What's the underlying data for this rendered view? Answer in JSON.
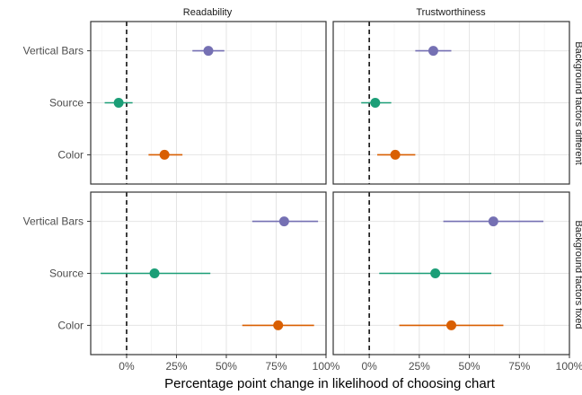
{
  "chart_data": {
    "type": "dot-errorbar",
    "xlabel": "Percentage point change in likelihood of choosing chart",
    "xlim": [
      -0.18,
      1.0
    ],
    "x_ticks": [
      0,
      0.25,
      0.5,
      0.75,
      1.0
    ],
    "x_tick_labels": [
      "0%",
      "25%",
      "50%",
      "75%",
      "100%"
    ],
    "reference_line_x": 0,
    "categories": [
      "Vertical Bars",
      "Source",
      "Color"
    ],
    "colors": {
      "Vertical Bars": "#7570b3",
      "Source": "#1b9e77",
      "Color": "#d95f02"
    },
    "columns": [
      "Readability",
      "Trustworthiness"
    ],
    "rows": [
      "Background factors different",
      "Background factors fixed"
    ],
    "grid": true,
    "panels": [
      {
        "column": "Readability",
        "row": "Background factors different",
        "points": [
          {
            "category": "Vertical Bars",
            "estimate": 0.41,
            "lower": 0.33,
            "upper": 0.49
          },
          {
            "category": "Source",
            "estimate": -0.04,
            "lower": -0.11,
            "upper": 0.03
          },
          {
            "category": "Color",
            "estimate": 0.19,
            "lower": 0.11,
            "upper": 0.28
          }
        ]
      },
      {
        "column": "Trustworthiness",
        "row": "Background factors different",
        "points": [
          {
            "category": "Vertical Bars",
            "estimate": 0.32,
            "lower": 0.23,
            "upper": 0.41
          },
          {
            "category": "Source",
            "estimate": 0.03,
            "lower": -0.04,
            "upper": 0.11
          },
          {
            "category": "Color",
            "estimate": 0.13,
            "lower": 0.04,
            "upper": 0.23
          }
        ]
      },
      {
        "column": "Readability",
        "row": "Background factors fixed",
        "points": [
          {
            "category": "Vertical Bars",
            "estimate": 0.79,
            "lower": 0.63,
            "upper": 0.96
          },
          {
            "category": "Source",
            "estimate": 0.14,
            "lower": -0.13,
            "upper": 0.42
          },
          {
            "category": "Color",
            "estimate": 0.76,
            "lower": 0.58,
            "upper": 0.94
          }
        ]
      },
      {
        "column": "Trustworthiness",
        "row": "Background factors fixed",
        "points": [
          {
            "category": "Vertical Bars",
            "estimate": 0.62,
            "lower": 0.37,
            "upper": 0.87
          },
          {
            "category": "Source",
            "estimate": 0.33,
            "lower": 0.05,
            "upper": 0.61
          },
          {
            "category": "Color",
            "estimate": 0.41,
            "lower": 0.15,
            "upper": 0.67
          }
        ]
      }
    ]
  }
}
